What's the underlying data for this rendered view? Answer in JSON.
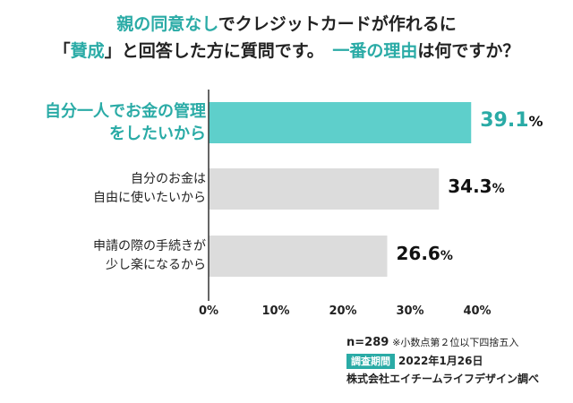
{
  "title": {
    "line1_a": "親の同意なし",
    "line1_b": "でクレジットカードが作れるに",
    "line2_a": "「",
    "line2_b": "賛成",
    "line2_c": "」と回答した方に質問です。",
    "line2_d": "一番の理由",
    "line2_e": "は何ですか？"
  },
  "chart_data": {
    "type": "bar",
    "orientation": "horizontal",
    "categories": [
      "自分一人でお金の管理\nをしたいから",
      "自分のお金は\n自由に使いたいから",
      "申請の際の手続きが\n少し楽になるから"
    ],
    "values": [
      39.1,
      34.3,
      26.6
    ],
    "value_labels": [
      "39.1",
      "34.3",
      "26.6"
    ],
    "unit": "%",
    "xlim": [
      0,
      40
    ],
    "xticks": [
      "0%",
      "10%",
      "20%",
      "30%",
      "40%"
    ],
    "highlight_index": 0,
    "colors": {
      "highlight": "#5ecfcb",
      "default": "#dcdcdc",
      "axis": "#333333",
      "accent": "#2aaba6"
    }
  },
  "footer": {
    "n": "n=289",
    "note": "※小数点第２位以下四捨五入",
    "period_label": "調査期間",
    "period": "2022年1月26日",
    "source": "株式会社エイチームライフデザイン調べ"
  }
}
